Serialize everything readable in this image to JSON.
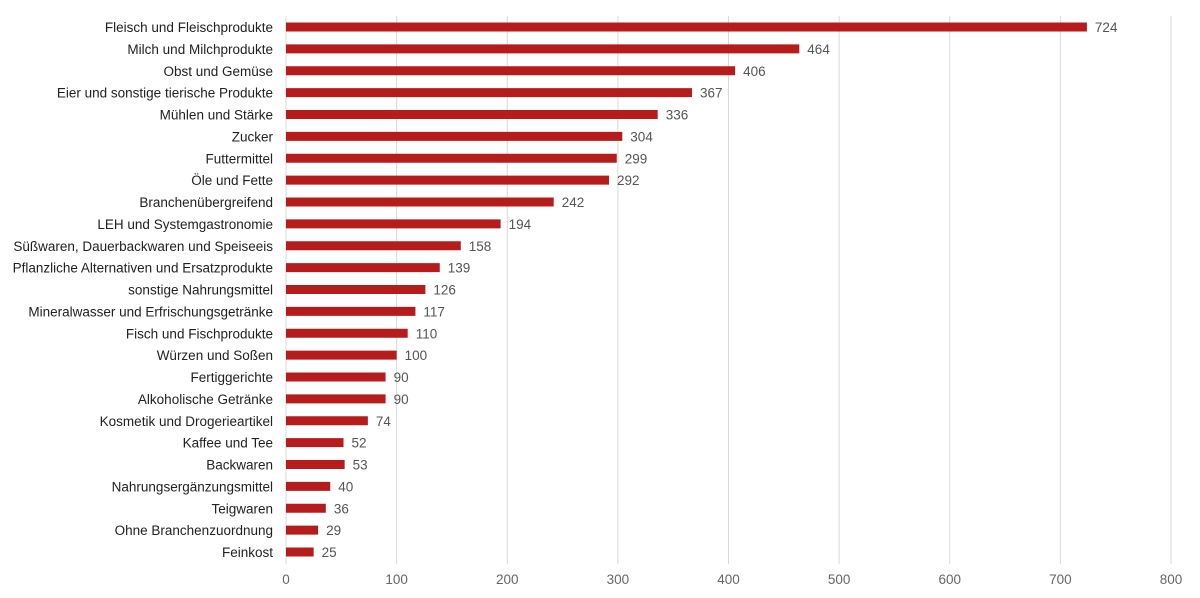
{
  "chart_data": {
    "type": "bar",
    "orientation": "horizontal",
    "title": "",
    "xlabel": "",
    "ylabel": "",
    "xlim": [
      0,
      800
    ],
    "x_ticks": [
      "0",
      "100",
      "200",
      "300",
      "400",
      "500",
      "600",
      "700",
      "800"
    ],
    "grid": "vertical",
    "bar_color": "#b71c1c",
    "categories": [
      "Fleisch und Fleischprodukte",
      "Milch und Milchprodukte",
      "Obst und Gemüse",
      "Eier und sonstige tierische Produkte",
      "Mühlen und Stärke",
      "Zucker",
      "Futtermittel",
      "Öle und Fette",
      "Branchenübergreifend",
      "LEH und Systemgastronomie",
      "Süßwaren, Dauerbackwaren und Speiseeis",
      "Pflanzliche Alternativen und Ersatzprodukte",
      "sonstige Nahrungsmittel",
      "Mineralwasser und Erfrischungsgetränke",
      "Fisch und Fischprodukte",
      "Würzen und Soßen",
      "Fertiggerichte",
      "Alkoholische Getränke",
      "Kosmetik und Drogerieartikel",
      "Kaffee und Tee",
      "Backwaren",
      "Nahrungsergänzungsmittel",
      "Teigwaren",
      "Ohne Branchenzuordnung",
      "Feinkost"
    ],
    "values": [
      724,
      464,
      406,
      367,
      336,
      304,
      299,
      292,
      242,
      194,
      158,
      139,
      126,
      117,
      110,
      100,
      90,
      90,
      74,
      52,
      53,
      40,
      36,
      29,
      25
    ]
  }
}
